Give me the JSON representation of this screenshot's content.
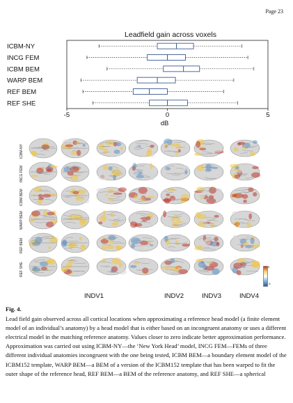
{
  "page_number": "Page 23",
  "chart_data": {
    "type": "boxplot",
    "title": "Leadfield gain across voxels",
    "xlabel": "dB",
    "xlim": [
      -5,
      5
    ],
    "x_ticks": [
      "-5",
      "0",
      "5"
    ],
    "series": [
      {
        "name": "ICBM-NY",
        "whisker_low": -3.4,
        "q1": -0.5,
        "median": 0.45,
        "q3": 1.3,
        "whisker_high": 3.7
      },
      {
        "name": "INCG FEM",
        "whisker_low": -4.0,
        "q1": -1.0,
        "median": 0.0,
        "q3": 0.9,
        "whisker_high": 4.0
      },
      {
        "name": "ICBM BEM",
        "whisker_low": -3.0,
        "q1": -0.2,
        "median": 0.8,
        "q3": 1.6,
        "whisker_high": 4.3
      },
      {
        "name": "WARP BEM",
        "whisker_low": -4.3,
        "q1": -1.5,
        "median": -0.5,
        "q3": 0.4,
        "whisker_high": 3.3
      },
      {
        "name": "REF BEM",
        "whisker_low": -4.2,
        "q1": -1.7,
        "median": -0.9,
        "q3": 0.0,
        "whisker_high": 2.8
      },
      {
        "name": "REF SHE",
        "whisker_low": -3.7,
        "q1": -0.9,
        "median": 0.0,
        "q3": 1.0,
        "whisker_high": 3.5
      }
    ]
  },
  "brain_grid": {
    "row_labels": [
      "ICBM-NY",
      "INCG FEM",
      "ICBM BEM",
      "WARP BEM",
      "REF BEM",
      "REF SHE"
    ],
    "column_labels": [
      "INDV1",
      "INDV2",
      "INDV3",
      "INDV4"
    ],
    "colorbar_ticks": [
      "5",
      "-5"
    ],
    "palette": {
      "hot": "#c0392b",
      "warm": "#f3c744",
      "neutral": "#d9d9d9",
      "cool": "#5b8fc7"
    }
  },
  "caption": {
    "label": "Fig. 4.",
    "text": "Lead field gain observed across all cortical locations when approximating a reference head model (a finite element model of an individual’s anatomy) by a head model that is either based on an incongruent anatomy or uses a different electrical model in the matching reference anatomy. Values closer to zero indicate better approximation performance. Approximation was carried out using ICBM-NY—the ‘New York Head’ model, INCG FEM—FEMs of three different individual anatomies incongruent with the one being tested, ICBM BEM—a boundary element model of the ICBM152 template, WARP BEM—a BEM of a version of the ICBM152 template that has been warped to fit the outer shape of the reference head, REF BEM—a BEM of the reference anatomy, and REF SHE—a spherical"
  }
}
